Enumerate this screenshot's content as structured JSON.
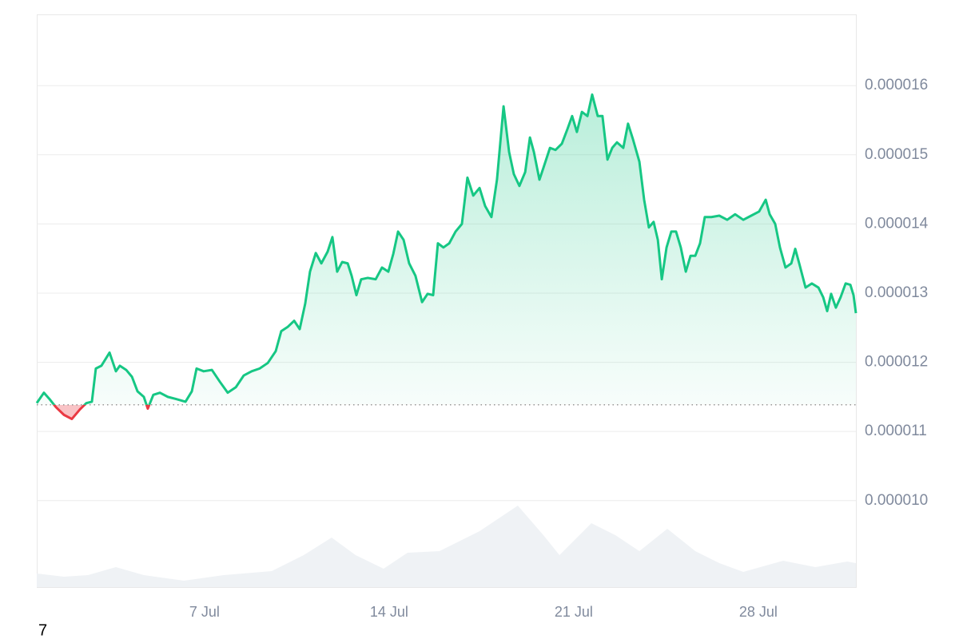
{
  "chart_data": {
    "type": "price-line",
    "x": [
      0.64,
      0.91,
      1.12,
      1.37,
      1.67,
      1.97,
      2.28,
      2.52,
      2.73,
      2.88,
      3.09,
      3.4,
      3.64,
      3.79,
      4.03,
      4.25,
      4.46,
      4.7,
      4.85,
      5.06,
      5.31,
      5.61,
      5.91,
      6.28,
      6.52,
      6.7,
      6.97,
      7.28,
      7.58,
      7.88,
      8.19,
      8.49,
      8.79,
      9.09,
      9.4,
      9.7,
      9.91,
      10.15,
      10.4,
      10.61,
      10.82,
      11.0,
      11.22,
      11.43,
      11.67,
      11.85,
      12.03,
      12.22,
      12.43,
      12.58,
      12.76,
      12.94,
      13.19,
      13.49,
      13.73,
      13.97,
      14.16,
      14.34,
      14.55,
      14.76,
      15.0,
      15.25,
      15.46,
      15.67,
      15.85,
      16.06,
      16.28,
      16.52,
      16.76,
      16.97,
      17.19,
      17.43,
      17.64,
      17.88,
      18.09,
      18.34,
      18.55,
      18.73,
      18.94,
      19.16,
      19.34,
      19.49,
      19.7,
      19.85,
      20.1,
      20.31,
      20.55,
      20.76,
      20.94,
      21.12,
      21.31,
      21.52,
      21.7,
      21.91,
      22.09,
      22.28,
      22.46,
      22.64,
      22.88,
      23.06,
      23.25,
      23.49,
      23.67,
      23.85,
      24.03,
      24.19,
      24.34,
      24.52,
      24.7,
      24.88,
      25.06,
      25.25,
      25.43,
      25.61,
      25.79,
      25.97,
      26.22,
      26.52,
      26.82,
      27.12,
      27.43,
      27.73,
      28.03,
      28.28,
      28.43,
      28.64,
      28.82,
      29.03,
      29.25,
      29.4,
      29.55,
      29.79,
      30.03,
      30.28,
      30.46,
      30.61,
      30.76,
      30.94,
      31.12,
      31.31,
      31.49,
      31.61,
      31.7
    ],
    "values": [
      1.141e-05,
      1.156e-05,
      1.147e-05,
      1.135e-05,
      1.124e-05,
      1.118e-05,
      1.132e-05,
      1.141e-05,
      1.143e-05,
      1.191e-05,
      1.195e-05,
      1.214e-05,
      1.187e-05,
      1.195e-05,
      1.189e-05,
      1.179e-05,
      1.158e-05,
      1.15e-05,
      1.133e-05,
      1.153e-05,
      1.156e-05,
      1.15e-05,
      1.147e-05,
      1.143e-05,
      1.158e-05,
      1.191e-05,
      1.187e-05,
      1.189e-05,
      1.172e-05,
      1.156e-05,
      1.164e-05,
      1.181e-05,
      1.187e-05,
      1.191e-05,
      1.199e-05,
      1.216e-05,
      1.245e-05,
      1.251e-05,
      1.26e-05,
      1.248e-05,
      1.285e-05,
      1.331e-05,
      1.358e-05,
      1.343e-05,
      1.36e-05,
      1.381e-05,
      1.331e-05,
      1.345e-05,
      1.343e-05,
      1.325e-05,
      1.297e-05,
      1.32e-05,
      1.322e-05,
      1.32e-05,
      1.337e-05,
      1.331e-05,
      1.357e-05,
      1.389e-05,
      1.377e-05,
      1.343e-05,
      1.325e-05,
      1.287e-05,
      1.299e-05,
      1.297e-05,
      1.372e-05,
      1.366e-05,
      1.372e-05,
      1.389e-05,
      1.4e-05,
      1.467e-05,
      1.441e-05,
      1.452e-05,
      1.426e-05,
      1.41e-05,
      1.464e-05,
      1.57e-05,
      1.504e-05,
      1.472e-05,
      1.455e-05,
      1.475e-05,
      1.525e-05,
      1.504e-05,
      1.464e-05,
      1.481e-05,
      1.51e-05,
      1.507e-05,
      1.516e-05,
      1.537e-05,
      1.556e-05,
      1.533e-05,
      1.562e-05,
      1.556e-05,
      1.587e-05,
      1.556e-05,
      1.556e-05,
      1.493e-05,
      1.51e-05,
      1.518e-05,
      1.51e-05,
      1.545e-05,
      1.522e-05,
      1.49e-05,
      1.435e-05,
      1.395e-05,
      1.403e-05,
      1.377e-05,
      1.32e-05,
      1.366e-05,
      1.389e-05,
      1.389e-05,
      1.366e-05,
      1.331e-05,
      1.354e-05,
      1.354e-05,
      1.372e-05,
      1.41e-05,
      1.41e-05,
      1.412e-05,
      1.406e-05,
      1.414e-05,
      1.406e-05,
      1.412e-05,
      1.418e-05,
      1.435e-05,
      1.414e-05,
      1.4e-05,
      1.366e-05,
      1.337e-05,
      1.343e-05,
      1.364e-05,
      1.343e-05,
      1.308e-05,
      1.314e-05,
      1.308e-05,
      1.294e-05,
      1.274e-05,
      1.299e-05,
      1.279e-05,
      1.294e-05,
      1.314e-05,
      1.312e-05,
      1.297e-05,
      1.271e-05
    ],
    "baseline": 1.1385e-05,
    "up_color": "#16c784",
    "down_color": "#ea3943",
    "xlim": [
      0.64,
      31.7
    ],
    "xticks": [
      {
        "value": 7,
        "label": "7 Jul"
      },
      {
        "value": 14,
        "label": "14 Jul"
      },
      {
        "value": 21,
        "label": "21 Jul"
      },
      {
        "value": 28,
        "label": "28 Jul"
      }
    ],
    "ylim": [
      8.75e-06,
      1.703e-05
    ],
    "yticks": [
      {
        "value": 1e-05,
        "label": "0.000010"
      },
      1.1e-05,
      1.2e-05,
      1.3e-05,
      1.4e-05,
      1.5e-05,
      1.6e-05
    ],
    "grid": true,
    "volume": {
      "color": "#eff2f5",
      "lim": [
        0,
        120
      ],
      "x": [
        0.64,
        1.67,
        2.58,
        3.64,
        4.7,
        6.22,
        7.73,
        9.55,
        10.76,
        11.82,
        12.73,
        13.79,
        14.7,
        15.91,
        17.43,
        18.88,
        19.85,
        20.46,
        21.67,
        22.58,
        23.49,
        24.55,
        25.61,
        26.52,
        27.43,
        28.94,
        30.16,
        31.37,
        31.7
      ],
      "values": [
        17,
        13,
        15,
        25,
        15,
        8,
        15,
        20,
        40,
        62,
        40,
        23,
        43,
        45,
        70,
        102,
        65,
        40,
        80,
        65,
        45,
        73,
        45,
        30,
        19,
        33,
        25,
        32,
        30
      ]
    },
    "footnote": "7"
  }
}
